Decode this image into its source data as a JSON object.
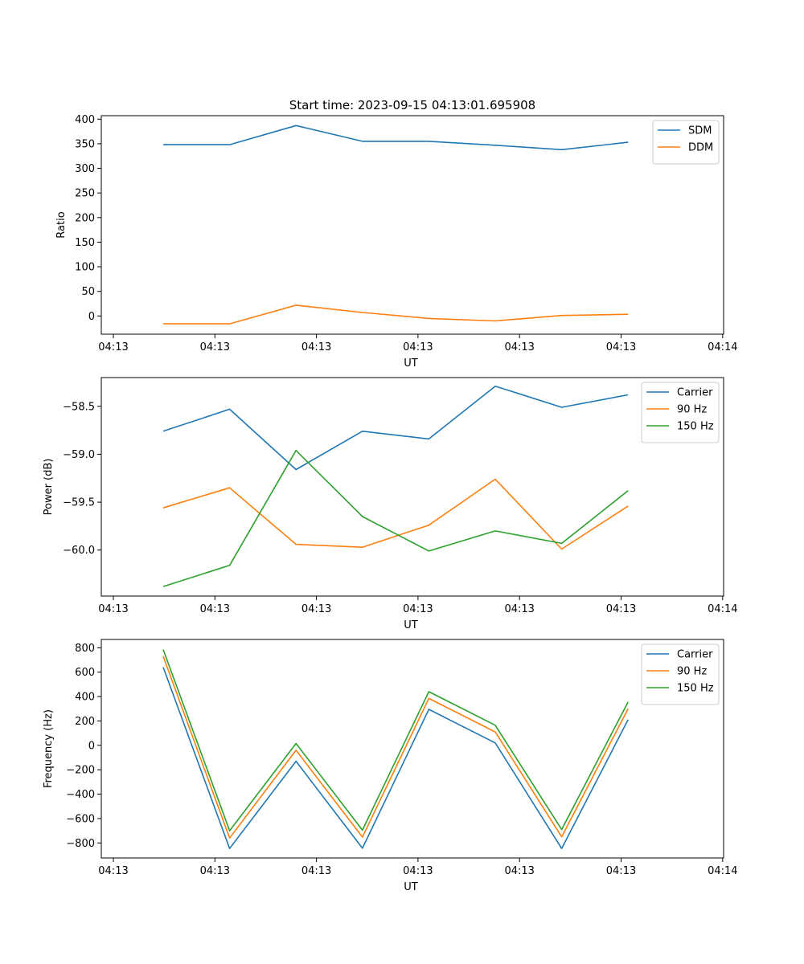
{
  "title": "Start time: 2023-09-15 04:13:01.695908",
  "chart_data": [
    {
      "type": "line",
      "xlabel": "UT",
      "ylabel": "Ratio",
      "x_tick_labels": [
        "04:13",
        "04:13",
        "04:13",
        "04:13",
        "04:13",
        "04:13",
        "04:14"
      ],
      "y_ticks": [
        0,
        50,
        100,
        150,
        200,
        250,
        300,
        350,
        400
      ],
      "y_tick_labels": [
        "0",
        "50",
        "100",
        "150",
        "200",
        "250",
        "300",
        "350",
        "400"
      ],
      "xlim": [
        -0.5,
        8.6
      ],
      "ylim": [
        -37,
        407
      ],
      "legend": "top-right",
      "series": [
        {
          "name": "SDM",
          "color": "#1f77b4",
          "values": [
            348,
            348,
            387,
            355,
            355,
            347,
            338,
            353
          ]
        },
        {
          "name": "DDM",
          "color": "#ff7f0e",
          "values": [
            -16,
            -16,
            22,
            7,
            -5,
            -10,
            1,
            3.5
          ]
        }
      ]
    },
    {
      "type": "line",
      "xlabel": "UT",
      "ylabel": "Power (dB)",
      "x_tick_labels": [
        "04:13",
        "04:13",
        "04:13",
        "04:13",
        "04:13",
        "04:13",
        "04:14"
      ],
      "y_ticks": [
        -60.0,
        -59.5,
        -59.0,
        -58.5
      ],
      "y_tick_labels": [
        "−60.0",
        "−59.5",
        "−59.0",
        "−58.5"
      ],
      "xlim": [
        -0.5,
        8.6
      ],
      "ylim": [
        -60.48,
        -58.2
      ],
      "legend": "top-right",
      "series": [
        {
          "name": "Carrier",
          "color": "#1f77b4",
          "values": [
            -58.76,
            -58.53,
            -59.16,
            -58.76,
            -58.84,
            -58.29,
            -58.51,
            -58.38
          ]
        },
        {
          "name": "90 Hz",
          "color": "#ff7f0e",
          "values": [
            -59.56,
            -59.35,
            -59.94,
            -59.97,
            -59.74,
            -59.26,
            -59.99,
            -59.54
          ]
        },
        {
          "name": "150 Hz",
          "color": "#2ca02c",
          "values": [
            -60.38,
            -60.16,
            -58.96,
            -59.65,
            -60.01,
            -59.8,
            -59.93,
            -59.38
          ]
        }
      ]
    },
    {
      "type": "line",
      "xlabel": "UT",
      "ylabel": "Frequency (Hz)",
      "x_tick_labels": [
        "04:13",
        "04:13",
        "04:13",
        "04:13",
        "04:13",
        "04:13",
        "04:14"
      ],
      "y_ticks": [
        -800,
        -600,
        -400,
        -200,
        0,
        200,
        400,
        600,
        800
      ],
      "y_tick_labels": [
        "−800",
        "−600",
        "−400",
        "−200",
        "0",
        "200",
        "400",
        "600",
        "800"
      ],
      "xlim": [
        -0.5,
        8.6
      ],
      "ylim": [
        -923,
        868
      ],
      "legend": "top-right",
      "series": [
        {
          "name": "Carrier",
          "color": "#1f77b4",
          "values": [
            640,
            -845,
            -130,
            -843,
            295,
            20,
            -845,
            210
          ]
        },
        {
          "name": "90 Hz",
          "color": "#ff7f0e",
          "values": [
            730,
            -760,
            -40,
            -752,
            385,
            110,
            -750,
            300
          ]
        },
        {
          "name": "150 Hz",
          "color": "#2ca02c",
          "values": [
            785,
            -700,
            15,
            -695,
            440,
            165,
            -690,
            355
          ]
        }
      ]
    }
  ]
}
